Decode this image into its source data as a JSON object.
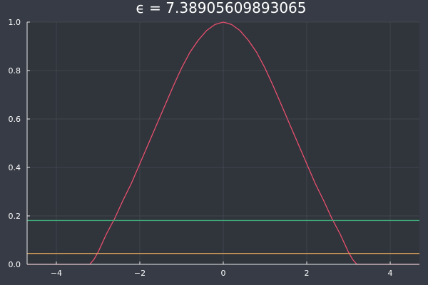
{
  "chart_data": {
    "type": "line",
    "title": "ϵ = 7.38905609893065",
    "xlabel": "",
    "ylabel": "",
    "xlim": [
      -4.7,
      4.7
    ],
    "ylim": [
      0.0,
      1.0
    ],
    "x_ticks": [
      -4,
      -2,
      0,
      2,
      4
    ],
    "x_tick_labels": [
      "−4",
      "−2",
      "0",
      "2",
      "4"
    ],
    "y_ticks": [
      0.0,
      0.2,
      0.4,
      0.6,
      0.8,
      1.0
    ],
    "y_tick_labels": [
      "0.0",
      "0.2",
      "0.4",
      "0.6",
      "0.8",
      "1.0"
    ],
    "grid": true,
    "legend": "none",
    "colors": {
      "background": "#363b45",
      "plot_background": "#30343b",
      "grid": "#4a4f58",
      "axis": "#e8e8e8",
      "text": "#ffffff"
    },
    "series": [
      {
        "color": "#e8506e",
        "x": [
          -4.7,
          -3.2,
          -3.1,
          -3.0,
          -2.8,
          -2.6,
          -2.4,
          -2.2,
          -2.0,
          -1.8,
          -1.6,
          -1.4,
          -1.2,
          -1.0,
          -0.8,
          -0.6,
          -0.4,
          -0.2,
          0.0,
          0.2,
          0.4,
          0.6,
          0.8,
          1.0,
          1.2,
          1.4,
          1.6,
          1.8,
          2.0,
          2.2,
          2.4,
          2.6,
          2.8,
          3.0,
          3.1,
          3.2,
          4.7
        ],
        "values": [
          0.0,
          0.0,
          0.02,
          0.05,
          0.125,
          0.19,
          0.265,
          0.335,
          0.415,
          0.495,
          0.575,
          0.655,
          0.735,
          0.81,
          0.875,
          0.925,
          0.965,
          0.99,
          1.0,
          0.99,
          0.965,
          0.925,
          0.875,
          0.81,
          0.735,
          0.655,
          0.575,
          0.495,
          0.415,
          0.335,
          0.265,
          0.19,
          0.125,
          0.05,
          0.02,
          0.0,
          0.0
        ]
      },
      {
        "color": "#3ea87a",
        "x": [
          -4.7,
          4.7
        ],
        "values": [
          0.181,
          0.181
        ]
      },
      {
        "color": "#d9a15a",
        "x": [
          -4.7,
          4.7
        ],
        "values": [
          0.045,
          0.045
        ]
      }
    ]
  }
}
